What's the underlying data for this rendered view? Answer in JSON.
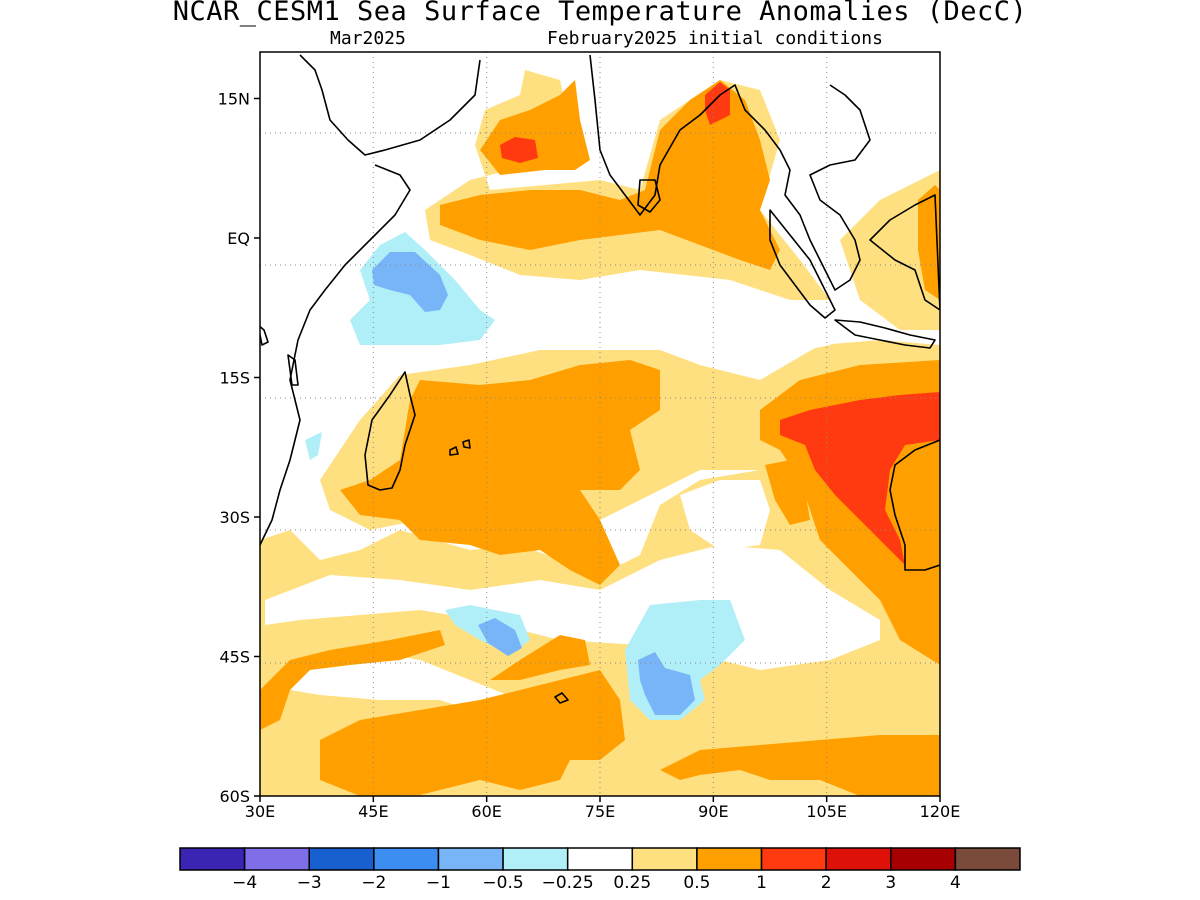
{
  "title": "NCAR_CESM1 Sea Surface Temperature Anomalies (DecC)",
  "subtitle_left": "Mar2025",
  "subtitle_right": "February2025 initial conditions",
  "map": {
    "lon_range": [
      30,
      120
    ],
    "lat_range": [
      -60,
      20
    ],
    "x_ticks": [
      {
        "value": 30,
        "label": "30E"
      },
      {
        "value": 45,
        "label": "45E"
      },
      {
        "value": 60,
        "label": "60E"
      },
      {
        "value": 75,
        "label": "75E"
      },
      {
        "value": 90,
        "label": "90E"
      },
      {
        "value": 105,
        "label": "105E"
      },
      {
        "value": 120,
        "label": "120E"
      }
    ],
    "y_ticks": [
      {
        "value": 15,
        "label": "15N"
      },
      {
        "value": 0,
        "label": "EQ"
      },
      {
        "value": -15,
        "label": "15S"
      },
      {
        "value": -30,
        "label": "30S"
      },
      {
        "value": -45,
        "label": "45S"
      },
      {
        "value": -60,
        "label": "60S"
      }
    ],
    "grid": "dotted"
  },
  "colorbar": {
    "colors": [
      "#3a24b4",
      "#7e6ee8",
      "#1860d0",
      "#3c8ff0",
      "#78b4f8",
      "#b0eef8",
      "#ffffff",
      "#ffe080",
      "#ffa000",
      "#ff3a10",
      "#dd1108",
      "#a60000",
      "#7a4a3a"
    ],
    "labels": [
      "−4",
      "−3",
      "−2",
      "−1",
      "−0.5",
      "−0.25",
      "0.25",
      "0.5",
      "1",
      "2",
      "3",
      "4"
    ]
  }
}
